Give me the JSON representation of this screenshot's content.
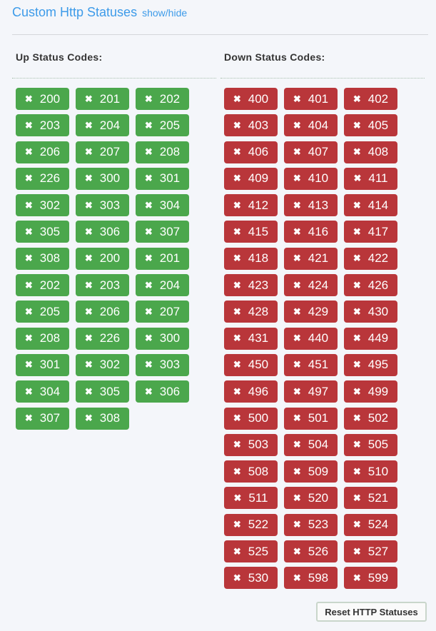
{
  "title": "Custom Http Statuses",
  "toggle_label": "show/hide",
  "remove_icon": "✖",
  "colors": {
    "up": "#4ba74c",
    "down": "#b9363a",
    "title": "#3d9be9"
  },
  "up": {
    "heading": "Up Status Codes:",
    "codes": [
      "200",
      "201",
      "202",
      "203",
      "204",
      "205",
      "206",
      "207",
      "208",
      "226",
      "300",
      "301",
      "302",
      "303",
      "304",
      "305",
      "306",
      "307",
      "308",
      "200",
      "201",
      "202",
      "203",
      "204",
      "205",
      "206",
      "207",
      "208",
      "226",
      "300",
      "301",
      "302",
      "303",
      "304",
      "305",
      "306",
      "307",
      "308"
    ]
  },
  "down": {
    "heading": "Down Status Codes:",
    "codes": [
      "400",
      "401",
      "402",
      "403",
      "404",
      "405",
      "406",
      "407",
      "408",
      "409",
      "410",
      "411",
      "412",
      "413",
      "414",
      "415",
      "416",
      "417",
      "418",
      "421",
      "422",
      "423",
      "424",
      "426",
      "428",
      "429",
      "430",
      "431",
      "440",
      "449",
      "450",
      "451",
      "495",
      "496",
      "497",
      "499",
      "500",
      "501",
      "502",
      "503",
      "504",
      "505",
      "508",
      "509",
      "510",
      "511",
      "520",
      "521",
      "522",
      "523",
      "524",
      "525",
      "526",
      "527",
      "530",
      "598",
      "599"
    ]
  },
  "reset_label": "Reset HTTP Statuses"
}
